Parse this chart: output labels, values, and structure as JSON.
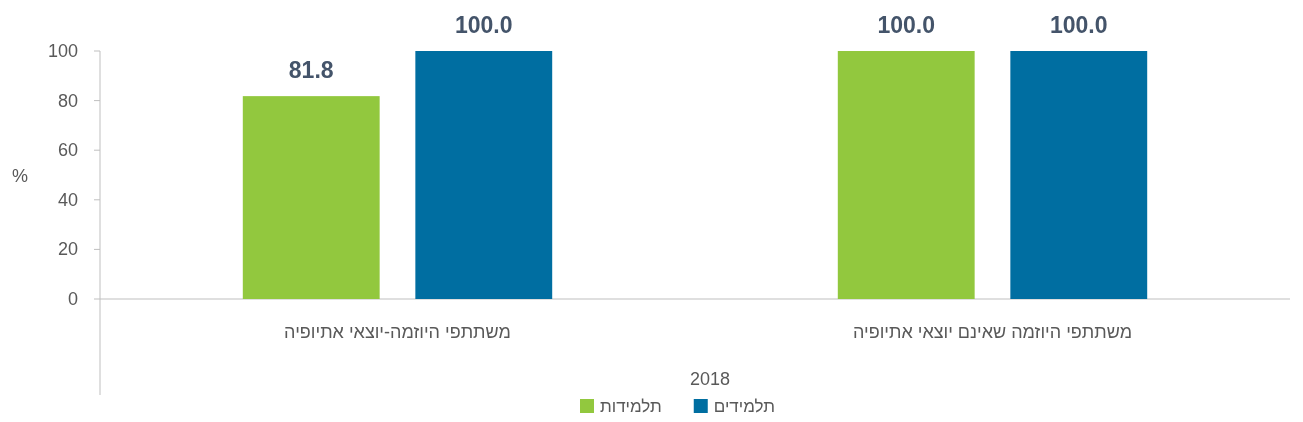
{
  "chart_data": {
    "type": "bar",
    "categories": [
      "משתתפי היוזמה-יוצאי אתיופיה",
      "משתתפי היוזמה שאינם יוצאי אתיופיה"
    ],
    "xlabel": "2018",
    "ylabel": "%",
    "series": [
      {
        "name": "תלמידות",
        "color": "#92c83e",
        "values": [
          81.8,
          100
        ],
        "value_labels": [
          "81.8",
          "100.0"
        ]
      },
      {
        "name": "תלמידים",
        "color": "#006ea1",
        "values": [
          100,
          100
        ],
        "value_labels": [
          "100.0",
          "100.0"
        ]
      }
    ],
    "ylim": [
      0,
      100
    ],
    "yticks": [
      0,
      20,
      40,
      60,
      80,
      100
    ],
    "grid": false,
    "legend": "bottom"
  }
}
